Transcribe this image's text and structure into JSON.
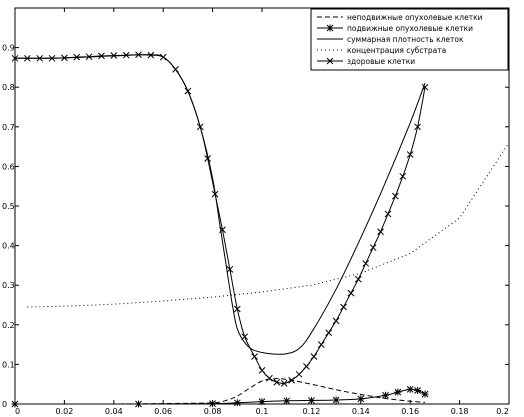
{
  "chart_data": {
    "type": "line",
    "title": "",
    "xlabel": "",
    "ylabel": "",
    "xlim": [
      0,
      0.2
    ],
    "ylim": [
      0,
      1
    ],
    "xticks": [
      0,
      0.02,
      0.04,
      0.06,
      0.08,
      0.1,
      0.12,
      0.14,
      0.16,
      0.18,
      0.2
    ],
    "xtick_labels": [
      "0",
      "0.02",
      "0.04",
      "0.06",
      "0.08",
      "0.1",
      "0.12",
      "0.14",
      "0.16",
      "0.18",
      "0.2"
    ],
    "yticks": [
      0,
      0.1,
      0.2,
      0.3,
      0.4,
      0.5,
      0.6,
      0.7,
      0.8,
      0.9
    ],
    "ytick_labels": [
      "0",
      "0.1",
      "0.2",
      "0.3",
      "0.4",
      "0.5",
      "0.6",
      "0.7",
      "0.8",
      "0.9"
    ],
    "grid": false,
    "legend_position": "top-right",
    "series": [
      {
        "name": "неподвижные опухолевые клетки",
        "style": "dashed",
        "marker": "none",
        "color": "#000000",
        "x": [
          0,
          0.02,
          0.04,
          0.06,
          0.08,
          0.085,
          0.09,
          0.095,
          0.1,
          0.105,
          0.11,
          0.12,
          0.13,
          0.14,
          0.15,
          0.16,
          0.166
        ],
        "y": [
          0.0,
          0.0,
          0.0,
          0.001,
          0.003,
          0.008,
          0.02,
          0.04,
          0.058,
          0.064,
          0.062,
          0.05,
          0.036,
          0.024,
          0.014,
          0.007,
          0.004
        ]
      },
      {
        "name": "подвижные опухолевые клетки",
        "style": "solid",
        "marker": "star",
        "color": "#000000",
        "x": [
          0,
          0.05,
          0.08,
          0.09,
          0.1,
          0.11,
          0.12,
          0.13,
          0.14,
          0.15,
          0.155,
          0.16,
          0.163,
          0.166
        ],
        "y": [
          0.0,
          0.0,
          0.001,
          0.003,
          0.006,
          0.008,
          0.009,
          0.01,
          0.013,
          0.022,
          0.03,
          0.037,
          0.034,
          0.025
        ]
      },
      {
        "name": "суммарная плотность клеток",
        "style": "solid",
        "marker": "none",
        "color": "#000000",
        "x": [
          0,
          0.02,
          0.04,
          0.055,
          0.06,
          0.065,
          0.07,
          0.075,
          0.08,
          0.083,
          0.086,
          0.088,
          0.09,
          0.093,
          0.096,
          0.1,
          0.105,
          0.11,
          0.115,
          0.12,
          0.13,
          0.14,
          0.15,
          0.16,
          0.166
        ],
        "y": [
          0.873,
          0.874,
          0.879,
          0.882,
          0.876,
          0.845,
          0.79,
          0.7,
          0.57,
          0.45,
          0.33,
          0.25,
          0.19,
          0.155,
          0.138,
          0.13,
          0.126,
          0.127,
          0.14,
          0.18,
          0.29,
          0.42,
          0.56,
          0.71,
          0.81
        ]
      },
      {
        "name": "концентрация субстрата",
        "style": "dotted",
        "marker": "none",
        "color": "#000000",
        "x": [
          0.005,
          0.02,
          0.04,
          0.06,
          0.08,
          0.1,
          0.12,
          0.14,
          0.16,
          0.18,
          0.2
        ],
        "y": [
          0.245,
          0.247,
          0.252,
          0.26,
          0.27,
          0.283,
          0.3,
          0.33,
          0.38,
          0.47,
          0.66
        ]
      },
      {
        "name": "здоровые клетки",
        "style": "solid",
        "marker": "x",
        "color": "#000000",
        "x": [
          0,
          0.005,
          0.01,
          0.015,
          0.02,
          0.025,
          0.03,
          0.035,
          0.04,
          0.045,
          0.05,
          0.055,
          0.06,
          0.065,
          0.07,
          0.075,
          0.078,
          0.081,
          0.084,
          0.087,
          0.09,
          0.093,
          0.097,
          0.1,
          0.103,
          0.106,
          0.109,
          0.112,
          0.115,
          0.118,
          0.121,
          0.124,
          0.127,
          0.13,
          0.133,
          0.136,
          0.139,
          0.142,
          0.145,
          0.148,
          0.151,
          0.154,
          0.157,
          0.16,
          0.163,
          0.166
        ],
        "y": [
          0.873,
          0.873,
          0.873,
          0.873,
          0.874,
          0.876,
          0.877,
          0.879,
          0.88,
          0.881,
          0.882,
          0.881,
          0.876,
          0.845,
          0.79,
          0.7,
          0.62,
          0.53,
          0.44,
          0.34,
          0.24,
          0.17,
          0.12,
          0.085,
          0.065,
          0.055,
          0.052,
          0.06,
          0.075,
          0.095,
          0.12,
          0.15,
          0.18,
          0.21,
          0.245,
          0.28,
          0.315,
          0.355,
          0.395,
          0.435,
          0.48,
          0.525,
          0.575,
          0.63,
          0.7,
          0.8
        ]
      }
    ]
  }
}
